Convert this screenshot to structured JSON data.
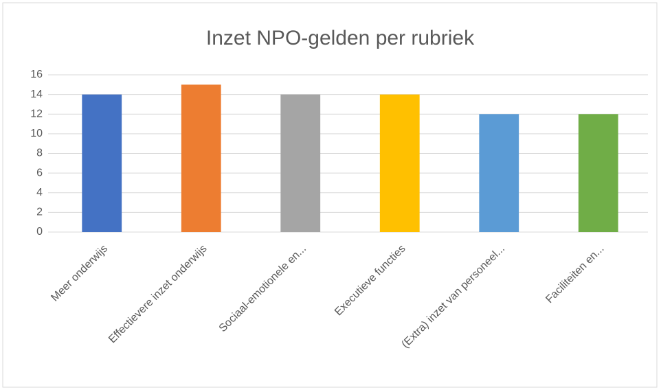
{
  "chart_data": {
    "type": "bar",
    "title": "Inzet NPO-gelden per rubriek",
    "categories": [
      "Meer onderwijs",
      "Effectievere inzet onderwijs",
      "Sociaal-emotionele en...",
      "Executieve functies",
      "(Extra) inzet van personeel...",
      "Faciliteiten en..."
    ],
    "values": [
      14,
      15,
      14,
      14,
      12,
      12
    ],
    "colors": [
      "#4472c4",
      "#ed7d31",
      "#a5a5a5",
      "#ffc000",
      "#5b9bd5",
      "#70ad47"
    ],
    "ylim": [
      0,
      16
    ],
    "yticks": [
      0,
      2,
      4,
      6,
      8,
      10,
      12,
      14,
      16
    ],
    "grid": true
  }
}
